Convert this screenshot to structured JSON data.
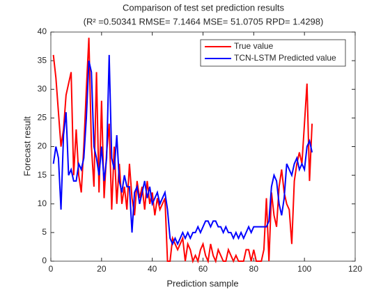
{
  "chart_data": {
    "type": "line",
    "title": "Comparison of test set prediction results",
    "subtitle": "(R² =0.50341 RMSE= 7.1464 MSE= 51.0705 RPD= 1.4298)",
    "x_label": "Prediction sample",
    "y_label": "Forecast result",
    "x": [
      1,
      2,
      3,
      4,
      5,
      6,
      7,
      8,
      9,
      10,
      11,
      12,
      13,
      14,
      15,
      16,
      17,
      18,
      19,
      20,
      21,
      22,
      23,
      24,
      25,
      26,
      27,
      28,
      29,
      30,
      31,
      32,
      33,
      34,
      35,
      36,
      37,
      38,
      39,
      40,
      41,
      42,
      43,
      44,
      45,
      46,
      47,
      48,
      49,
      50,
      51,
      52,
      53,
      54,
      55,
      56,
      57,
      58,
      59,
      60,
      61,
      62,
      63,
      64,
      65,
      66,
      67,
      68,
      69,
      70,
      71,
      72,
      73,
      74,
      75,
      76,
      77,
      78,
      79,
      80,
      81,
      82,
      83,
      84,
      85,
      86,
      87,
      88,
      89,
      90,
      91,
      92,
      93,
      94,
      95,
      96,
      97,
      98,
      99,
      100,
      101,
      102,
      103
    ],
    "series": [
      {
        "name": "True value",
        "color": "#ff0000",
        "values": [
          36,
          32,
          26,
          20,
          23,
          29,
          31,
          33,
          15,
          23,
          15,
          12,
          20,
          30,
          39,
          20,
          13,
          33,
          12,
          28,
          11,
          19,
          24,
          9,
          20,
          10,
          17,
          10,
          13,
          9,
          17,
          11,
          8,
          14,
          11,
          13,
          9,
          14,
          10,
          12,
          8,
          11,
          9,
          10,
          11,
          0,
          0,
          4,
          3,
          2,
          3,
          4,
          0,
          3,
          2,
          0,
          1,
          0,
          2,
          3,
          1,
          0,
          3,
          1,
          0,
          2,
          1,
          0,
          0,
          2,
          1,
          0,
          1,
          0,
          0,
          0,
          2,
          2,
          0,
          2,
          0,
          0,
          0,
          2,
          11,
          0,
          12,
          8,
          6,
          13,
          16,
          12,
          10,
          9,
          3,
          14,
          17,
          19,
          17,
          24,
          31,
          14,
          24
        ]
      },
      {
        "name": "TCN-LSTM Predicted value",
        "color": "#0000ff",
        "values": [
          17,
          20,
          18,
          9,
          22,
          26,
          15,
          16,
          14,
          14,
          17,
          16,
          18,
          25,
          35,
          33,
          20,
          18,
          15,
          20,
          14,
          18,
          36,
          18,
          16,
          22,
          14,
          12,
          15,
          13,
          13,
          5,
          12,
          13,
          10,
          12,
          14,
          11,
          13,
          10,
          11,
          12,
          10,
          11,
          12,
          9,
          4,
          3,
          4,
          3,
          4,
          5,
          4,
          5,
          4,
          5,
          5,
          6,
          5,
          6,
          7,
          7,
          6,
          7,
          7,
          6,
          6,
          5,
          6,
          5,
          5,
          4,
          5,
          4,
          5,
          4,
          5,
          6,
          5,
          6,
          6,
          6,
          6,
          6,
          6,
          7,
          13,
          15,
          14,
          10,
          8,
          11,
          17,
          16,
          15,
          17,
          18,
          16,
          17,
          16,
          20,
          21,
          19
        ]
      }
    ],
    "xlim": [
      0,
      120
    ],
    "xticks": [
      0,
      20,
      40,
      60,
      80,
      100,
      120
    ],
    "ylim": [
      0,
      40
    ],
    "yticks": [
      0,
      5,
      10,
      15,
      20,
      25,
      30,
      35,
      40
    ],
    "legend": "top-right"
  }
}
